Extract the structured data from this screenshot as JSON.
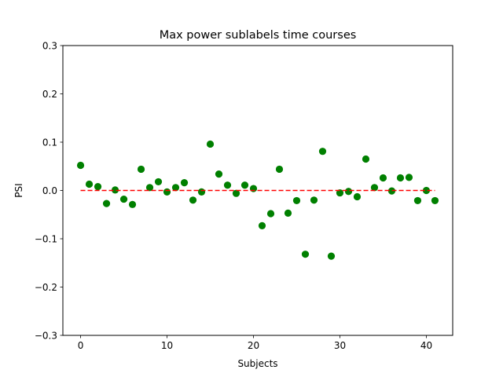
{
  "chart_data": {
    "type": "scatter",
    "title": "Max power sublabels time courses",
    "xlabel": "Subjects",
    "ylabel": "PSI",
    "xlim": [
      -2.05,
      43.05
    ],
    "ylim": [
      -0.3,
      0.3
    ],
    "xticks": [
      0,
      10,
      20,
      30,
      40
    ],
    "yticks": [
      -0.3,
      -0.2,
      -0.1,
      0.0,
      0.1,
      0.2,
      0.3
    ],
    "xtick_labels": [
      "0",
      "10",
      "20",
      "30",
      "40"
    ],
    "ytick_labels": [
      "−0.3",
      "−0.2",
      "−0.1",
      "0.0",
      "0.1",
      "0.2",
      "0.3"
    ],
    "grid": false,
    "series": [
      {
        "marker_color": "#008000",
        "x": [
          0,
          1,
          2,
          3,
          4,
          5,
          6,
          7,
          8,
          9,
          10,
          11,
          12,
          13,
          14,
          15,
          16,
          17,
          18,
          19,
          20,
          21,
          22,
          23,
          24,
          25,
          26,
          27,
          28,
          29,
          30,
          31,
          32,
          33,
          34,
          35,
          36,
          37,
          38,
          39,
          40,
          41
        ],
        "y": [
          0.052,
          0.013,
          0.008,
          -0.027,
          0.001,
          -0.018,
          -0.029,
          0.044,
          0.006,
          0.018,
          -0.003,
          0.006,
          0.016,
          -0.02,
          -0.003,
          0.096,
          0.034,
          0.011,
          -0.006,
          0.011,
          0.004,
          -0.073,
          -0.048,
          0.044,
          -0.047,
          -0.021,
          -0.132,
          -0.02,
          0.081,
          -0.136,
          -0.005,
          -0.002,
          -0.013,
          0.065,
          0.006,
          0.026,
          -0.001,
          0.026,
          0.027,
          -0.021,
          0.0,
          -0.021
        ]
      }
    ],
    "reference_line": {
      "y": 0.0,
      "x_range": [
        0,
        41
      ],
      "color": "#ff0000",
      "style": "dashed"
    }
  }
}
